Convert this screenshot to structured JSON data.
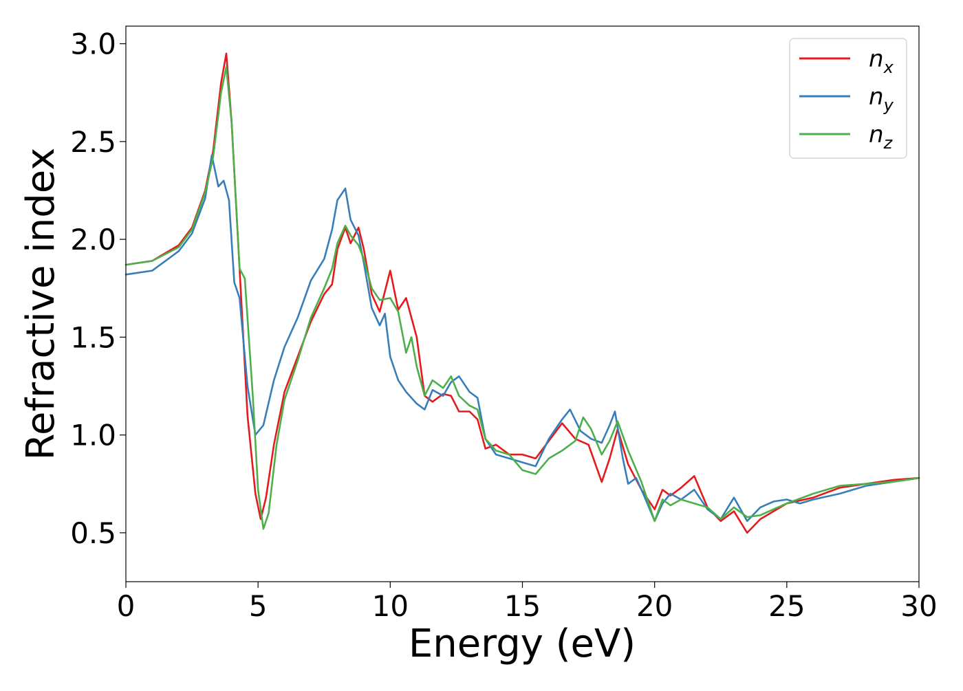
{
  "chart_data": {
    "type": "line",
    "title": "",
    "xlabel": "Energy (eV)",
    "ylabel": "Refractive index",
    "xlim": [
      0,
      30
    ],
    "ylim": [
      0.25,
      3.09
    ],
    "xticks": [
      "0",
      "5",
      "10",
      "15",
      "20",
      "25",
      "30"
    ],
    "yticks": [
      "0.5",
      "1.0",
      "1.5",
      "2.0",
      "2.5",
      "3.0"
    ],
    "grid": false,
    "legend_position": "top-right",
    "series": [
      {
        "name": "n",
        "subscript": "x",
        "color": "#e41a1c",
        "points": [
          [
            0,
            1.87
          ],
          [
            1,
            1.89
          ],
          [
            2,
            1.97
          ],
          [
            2.5,
            2.06
          ],
          [
            3,
            2.25
          ],
          [
            3.3,
            2.45
          ],
          [
            3.6,
            2.8
          ],
          [
            3.8,
            2.95
          ],
          [
            4.0,
            2.6
          ],
          [
            4.3,
            1.85
          ],
          [
            4.6,
            1.1
          ],
          [
            4.9,
            0.7
          ],
          [
            5.1,
            0.57
          ],
          [
            5.3,
            0.68
          ],
          [
            5.6,
            0.95
          ],
          [
            6.0,
            1.22
          ],
          [
            6.5,
            1.4
          ],
          [
            7.0,
            1.58
          ],
          [
            7.5,
            1.72
          ],
          [
            7.8,
            1.77
          ],
          [
            8.0,
            1.95
          ],
          [
            8.3,
            2.06
          ],
          [
            8.5,
            1.98
          ],
          [
            8.8,
            2.06
          ],
          [
            9.0,
            1.95
          ],
          [
            9.3,
            1.72
          ],
          [
            9.6,
            1.63
          ],
          [
            10.0,
            1.84
          ],
          [
            10.3,
            1.64
          ],
          [
            10.6,
            1.7
          ],
          [
            11.0,
            1.5
          ],
          [
            11.3,
            1.2
          ],
          [
            11.6,
            1.17
          ],
          [
            12.0,
            1.21
          ],
          [
            12.3,
            1.2
          ],
          [
            12.6,
            1.12
          ],
          [
            13.0,
            1.12
          ],
          [
            13.3,
            1.08
          ],
          [
            13.6,
            0.93
          ],
          [
            14.0,
            0.95
          ],
          [
            14.5,
            0.9
          ],
          [
            15.0,
            0.9
          ],
          [
            15.5,
            0.88
          ],
          [
            16.0,
            0.97
          ],
          [
            16.5,
            1.06
          ],
          [
            17.0,
            0.98
          ],
          [
            17.5,
            0.95
          ],
          [
            18.0,
            0.76
          ],
          [
            18.3,
            0.88
          ],
          [
            18.6,
            1.03
          ],
          [
            19.0,
            0.85
          ],
          [
            19.5,
            0.72
          ],
          [
            20.0,
            0.62
          ],
          [
            20.3,
            0.72
          ],
          [
            20.6,
            0.69
          ],
          [
            21.0,
            0.73
          ],
          [
            21.5,
            0.79
          ],
          [
            22.0,
            0.63
          ],
          [
            22.5,
            0.56
          ],
          [
            23.0,
            0.61
          ],
          [
            23.5,
            0.5
          ],
          [
            24.0,
            0.57
          ],
          [
            24.5,
            0.61
          ],
          [
            25.0,
            0.65
          ],
          [
            26.0,
            0.68
          ],
          [
            27.0,
            0.73
          ],
          [
            28.0,
            0.75
          ],
          [
            29.0,
            0.77
          ],
          [
            30.0,
            0.78
          ]
        ]
      },
      {
        "name": "n",
        "subscript": "y",
        "color": "#377eb8",
        "points": [
          [
            0,
            1.82
          ],
          [
            1,
            1.84
          ],
          [
            2,
            1.94
          ],
          [
            2.5,
            2.03
          ],
          [
            3.0,
            2.21
          ],
          [
            3.25,
            2.43
          ],
          [
            3.5,
            2.27
          ],
          [
            3.7,
            2.3
          ],
          [
            3.9,
            2.2
          ],
          [
            4.1,
            1.78
          ],
          [
            4.3,
            1.7
          ],
          [
            4.6,
            1.25
          ],
          [
            4.9,
            1.0
          ],
          [
            5.2,
            1.05
          ],
          [
            5.6,
            1.28
          ],
          [
            6.0,
            1.45
          ],
          [
            6.5,
            1.6
          ],
          [
            7.0,
            1.79
          ],
          [
            7.5,
            1.9
          ],
          [
            7.8,
            2.05
          ],
          [
            8.0,
            2.2
          ],
          [
            8.3,
            2.26
          ],
          [
            8.5,
            2.1
          ],
          [
            8.8,
            2.02
          ],
          [
            9.0,
            1.88
          ],
          [
            9.3,
            1.65
          ],
          [
            9.6,
            1.56
          ],
          [
            9.8,
            1.62
          ],
          [
            10.0,
            1.4
          ],
          [
            10.3,
            1.28
          ],
          [
            10.6,
            1.22
          ],
          [
            11.0,
            1.16
          ],
          [
            11.3,
            1.13
          ],
          [
            11.6,
            1.23
          ],
          [
            12.0,
            1.2
          ],
          [
            12.3,
            1.27
          ],
          [
            12.6,
            1.3
          ],
          [
            13.0,
            1.22
          ],
          [
            13.3,
            1.19
          ],
          [
            13.6,
            0.98
          ],
          [
            14.0,
            0.9
          ],
          [
            14.5,
            0.88
          ],
          [
            15.0,
            0.86
          ],
          [
            15.5,
            0.84
          ],
          [
            16.0,
            0.98
          ],
          [
            16.5,
            1.08
          ],
          [
            16.8,
            1.13
          ],
          [
            17.2,
            1.02
          ],
          [
            17.6,
            0.98
          ],
          [
            18.0,
            0.96
          ],
          [
            18.3,
            1.05
          ],
          [
            18.5,
            1.12
          ],
          [
            18.8,
            0.88
          ],
          [
            19.0,
            0.75
          ],
          [
            19.3,
            0.78
          ],
          [
            19.6,
            0.69
          ],
          [
            20.0,
            0.56
          ],
          [
            20.3,
            0.65
          ],
          [
            20.6,
            0.7
          ],
          [
            21.0,
            0.67
          ],
          [
            21.5,
            0.72
          ],
          [
            22.0,
            0.62
          ],
          [
            22.5,
            0.57
          ],
          [
            23.0,
            0.68
          ],
          [
            23.5,
            0.56
          ],
          [
            24.0,
            0.63
          ],
          [
            24.5,
            0.66
          ],
          [
            25.0,
            0.67
          ],
          [
            25.5,
            0.65
          ],
          [
            26.0,
            0.67
          ],
          [
            27.0,
            0.7
          ],
          [
            28.0,
            0.74
          ],
          [
            29.0,
            0.76
          ],
          [
            30.0,
            0.78
          ]
        ]
      },
      {
        "name": "n",
        "subscript": "z",
        "color": "#4daf4a",
        "points": [
          [
            0,
            1.87
          ],
          [
            1,
            1.89
          ],
          [
            2,
            1.96
          ],
          [
            2.5,
            2.05
          ],
          [
            3.0,
            2.24
          ],
          [
            3.3,
            2.42
          ],
          [
            3.6,
            2.75
          ],
          [
            3.8,
            2.88
          ],
          [
            4.0,
            2.6
          ],
          [
            4.3,
            1.85
          ],
          [
            4.5,
            1.8
          ],
          [
            4.8,
            1.2
          ],
          [
            5.0,
            0.72
          ],
          [
            5.2,
            0.52
          ],
          [
            5.4,
            0.6
          ],
          [
            5.7,
            0.95
          ],
          [
            6.0,
            1.18
          ],
          [
            6.5,
            1.38
          ],
          [
            7.0,
            1.6
          ],
          [
            7.5,
            1.75
          ],
          [
            7.8,
            1.85
          ],
          [
            8.0,
            1.98
          ],
          [
            8.3,
            2.07
          ],
          [
            8.5,
            2.02
          ],
          [
            8.8,
            1.97
          ],
          [
            9.0,
            1.9
          ],
          [
            9.3,
            1.75
          ],
          [
            9.6,
            1.69
          ],
          [
            10.0,
            1.7
          ],
          [
            10.3,
            1.63
          ],
          [
            10.6,
            1.42
          ],
          [
            10.8,
            1.5
          ],
          [
            11.0,
            1.35
          ],
          [
            11.3,
            1.2
          ],
          [
            11.6,
            1.28
          ],
          [
            12.0,
            1.24
          ],
          [
            12.3,
            1.3
          ],
          [
            12.6,
            1.2
          ],
          [
            13.0,
            1.15
          ],
          [
            13.3,
            1.13
          ],
          [
            13.6,
            0.98
          ],
          [
            14.0,
            0.92
          ],
          [
            14.5,
            0.9
          ],
          [
            15.0,
            0.82
          ],
          [
            15.5,
            0.8
          ],
          [
            16.0,
            0.88
          ],
          [
            16.5,
            0.92
          ],
          [
            17.0,
            0.97
          ],
          [
            17.3,
            1.09
          ],
          [
            17.6,
            1.03
          ],
          [
            18.0,
            0.9
          ],
          [
            18.3,
            0.97
          ],
          [
            18.6,
            1.07
          ],
          [
            19.0,
            0.92
          ],
          [
            19.5,
            0.76
          ],
          [
            20.0,
            0.56
          ],
          [
            20.3,
            0.67
          ],
          [
            20.6,
            0.64
          ],
          [
            21.0,
            0.67
          ],
          [
            21.5,
            0.65
          ],
          [
            22.0,
            0.63
          ],
          [
            22.5,
            0.57
          ],
          [
            23.0,
            0.63
          ],
          [
            23.5,
            0.58
          ],
          [
            24.0,
            0.59
          ],
          [
            24.5,
            0.62
          ],
          [
            25.0,
            0.65
          ],
          [
            26.0,
            0.7
          ],
          [
            27.0,
            0.74
          ],
          [
            28.0,
            0.75
          ],
          [
            29.0,
            0.76
          ],
          [
            30.0,
            0.78
          ]
        ]
      }
    ]
  }
}
